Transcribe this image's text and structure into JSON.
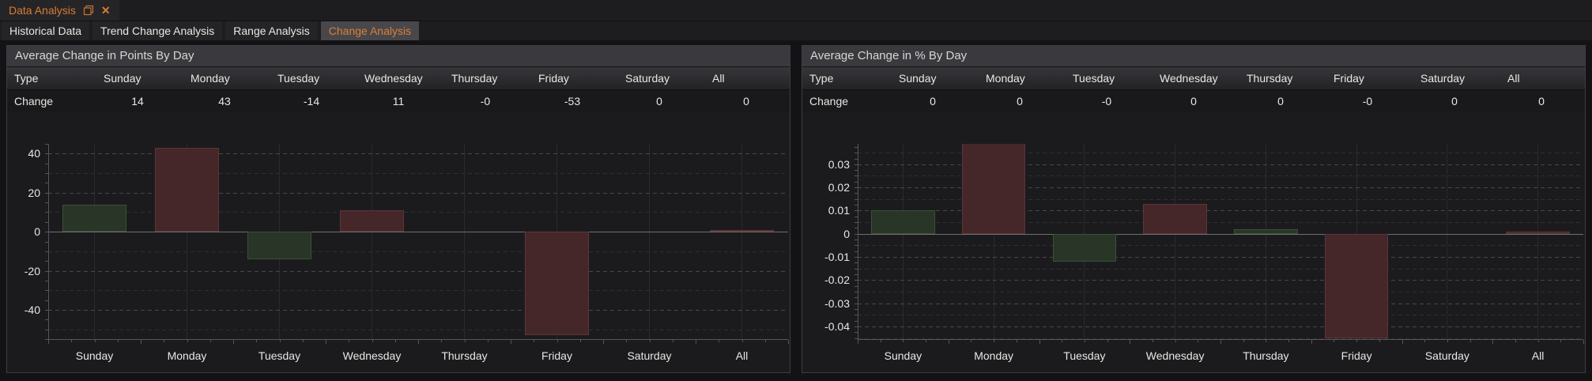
{
  "window": {
    "document_tab": "Data Analysis",
    "close_glyph": "✕"
  },
  "nav_tabs": [
    {
      "label": "Historical Data",
      "active": false
    },
    {
      "label": "Trend Change Analysis",
      "active": false
    },
    {
      "label": "Range Analysis",
      "active": false
    },
    {
      "label": "Change Analysis",
      "active": true
    }
  ],
  "colors": {
    "accent_orange": "#d97c33",
    "bar_green": "#283527",
    "bar_green_border": "#3a5233",
    "bar_red": "#452729",
    "bar_red_border": "#5d3537",
    "panel_header_bg": "#3a3a3e",
    "panel_bg": "#1b1b1e",
    "zero_line": "#6e6e73"
  },
  "panels": [
    {
      "title": "Average Change in Points By Day",
      "table": {
        "type_header": "Type",
        "row_label": "Change",
        "columns": [
          "Sunday",
          "Monday",
          "Tuesday",
          "Wednesday",
          "Thursday",
          "Friday",
          "Saturday",
          "All"
        ],
        "values": [
          "14",
          "43",
          "-14",
          "11",
          "-0",
          "-53",
          "0",
          "0"
        ]
      }
    },
    {
      "title": "Average Change in % By Day",
      "table": {
        "type_header": "Type",
        "row_label": "Change",
        "columns": [
          "Sunday",
          "Monday",
          "Tuesday",
          "Wednesday",
          "Thursday",
          "Friday",
          "Saturday",
          "All"
        ],
        "values": [
          "0",
          "0",
          "-0",
          "0",
          "0",
          "-0",
          "0",
          "0"
        ]
      }
    }
  ],
  "chart_data": [
    {
      "type": "bar",
      "title": "Average Change in Points By Day",
      "categories": [
        "Sunday",
        "Monday",
        "Tuesday",
        "Wednesday",
        "Thursday",
        "Friday",
        "Saturday",
        "All"
      ],
      "values": [
        14,
        43,
        -14,
        11,
        0,
        -53,
        0,
        0.4
      ],
      "bar_colors": [
        "green",
        "red",
        "green",
        "red",
        "none",
        "red",
        "none",
        "red"
      ],
      "yticks": [
        {
          "v": 40,
          "label": "40"
        },
        {
          "v": 20,
          "label": "20"
        },
        {
          "v": 0,
          "label": "0"
        },
        {
          "v": -20,
          "label": "-20"
        },
        {
          "v": -40,
          "label": "-40"
        }
      ],
      "ylim": [
        -55,
        45
      ],
      "minor_grid_step": 10,
      "axis_minor_tick_step": 5,
      "xlabel": "",
      "ylabel": "",
      "grid": true,
      "legend": false
    },
    {
      "type": "bar",
      "title": "Average Change in % By Day",
      "categories": [
        "Sunday",
        "Monday",
        "Tuesday",
        "Wednesday",
        "Thursday",
        "Friday",
        "Saturday",
        "All"
      ],
      "values": [
        0.01,
        0.039,
        -0.012,
        0.013,
        0.002,
        -0.045,
        0,
        0.001
      ],
      "bar_colors": [
        "green",
        "red",
        "green",
        "red",
        "green",
        "red",
        "none",
        "red"
      ],
      "yticks": [
        {
          "v": 0.03,
          "label": "0.03"
        },
        {
          "v": 0.02,
          "label": "0.02"
        },
        {
          "v": 0.01,
          "label": "0.01"
        },
        {
          "v": 0,
          "label": "0"
        },
        {
          "v": -0.01,
          "label": "-0.01"
        },
        {
          "v": -0.02,
          "label": "-0.02"
        },
        {
          "v": -0.03,
          "label": "-0.03"
        },
        {
          "v": -0.04,
          "label": "-0.04"
        }
      ],
      "ylim": [
        -0.0455,
        0.0388
      ],
      "minor_grid_step": 0.005,
      "axis_minor_tick_step": 0.0025,
      "xlabel": "",
      "ylabel": "",
      "grid": true,
      "legend": false
    }
  ]
}
